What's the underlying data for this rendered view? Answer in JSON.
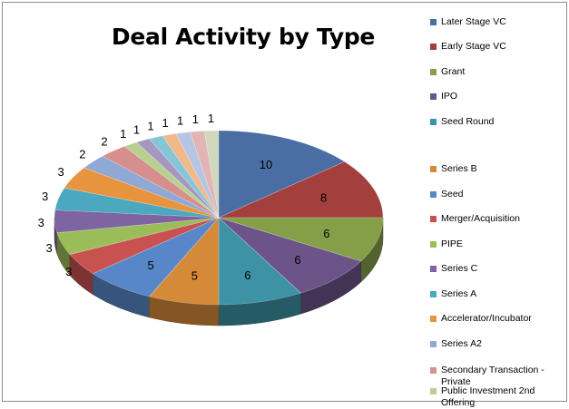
{
  "chart_data": {
    "type": "pie",
    "style": "3d",
    "title": "Deal Activity by Type",
    "legend_position": "right",
    "slices": [
      {
        "label": "Later Stage VC",
        "value": 10,
        "color": "#4a6ea3"
      },
      {
        "label": "Early Stage VC",
        "value": 8,
        "color": "#a3403d"
      },
      {
        "label": "Grant",
        "value": 6,
        "color": "#849f48"
      },
      {
        "label": "IPO",
        "value": 6,
        "color": "#6c5489"
      },
      {
        "label": "Seed Round",
        "value": 6,
        "color": "#3d93a5"
      },
      {
        "label": "Series B",
        "value": 5,
        "color": "#d58a3a"
      },
      {
        "label": "Seed",
        "value": 5,
        "color": "#5887c9"
      },
      {
        "label": "Merger/Acquisition",
        "value": 3,
        "color": "#c8524f"
      },
      {
        "label": "PIPE",
        "value": 3,
        "color": "#9bbd59"
      },
      {
        "label": "Series C",
        "value": 3,
        "color": "#7f64a2"
      },
      {
        "label": "Series A",
        "value": 3,
        "color": "#4ba8bf"
      },
      {
        "label": "Accelerator/Incubator",
        "value": 3,
        "color": "#e8943f"
      },
      {
        "label": "Series A2",
        "value": 2,
        "color": "#90a8d4"
      },
      {
        "label": "Secondary Transaction - Private",
        "value": 2,
        "color": "#d68f8d"
      },
      {
        "label": "Public Investment 2nd Offering",
        "value": 1,
        "color": "#b7d08f"
      },
      {
        "label": "",
        "value": 1,
        "color": "#a696c0"
      },
      {
        "label": "",
        "value": 1,
        "color": "#86c5d6"
      },
      {
        "label": "",
        "value": 1,
        "color": "#f0b98a"
      },
      {
        "label": "",
        "value": 1,
        "color": "#b5c5e3"
      },
      {
        "label": "",
        "value": 1,
        "color": "#e1b5b4"
      },
      {
        "label": "",
        "value": 1,
        "color": "#d1d8bd"
      }
    ]
  }
}
